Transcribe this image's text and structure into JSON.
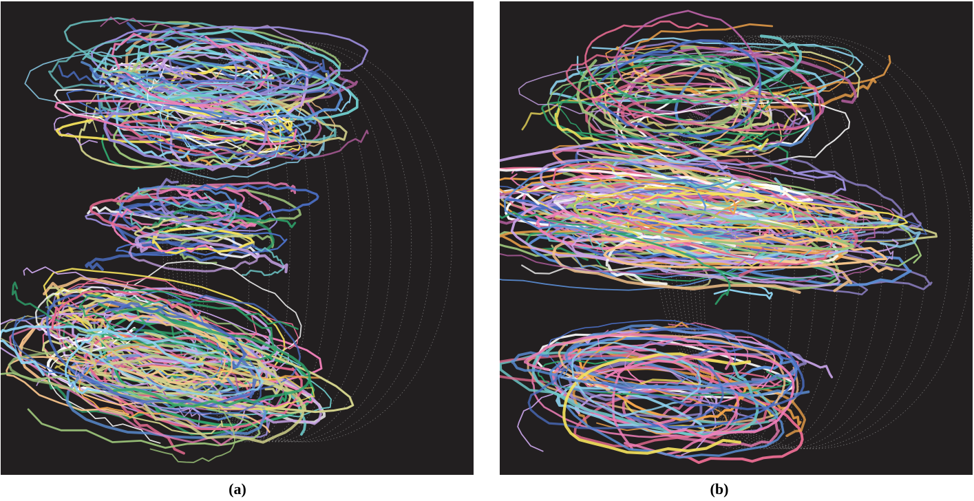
{
  "panels": [
    {
      "id": "a",
      "caption": "(a)",
      "background": "#221f20",
      "cluster_layout": "vortex-top-and-bottom-with-twisted-middle"
    },
    {
      "id": "b",
      "caption": "(b)",
      "background": "#221f20",
      "cluster_layout": "vortex-top-dense-middle-bottom-rings"
    }
  ],
  "curve_palette": [
    "#5b8fd6",
    "#f07fb8",
    "#f4e25c",
    "#2fa36b",
    "#8ed3f0",
    "#ffffff",
    "#c9a4e8",
    "#f7c38a",
    "#9a8bd8",
    "#e46a8f",
    "#6cc6c6",
    "#d0d08a",
    "#4b6ec2",
    "#f0a34a",
    "#b45fa0",
    "#9cc47a"
  ],
  "guide_color": "#bdbdbd"
}
